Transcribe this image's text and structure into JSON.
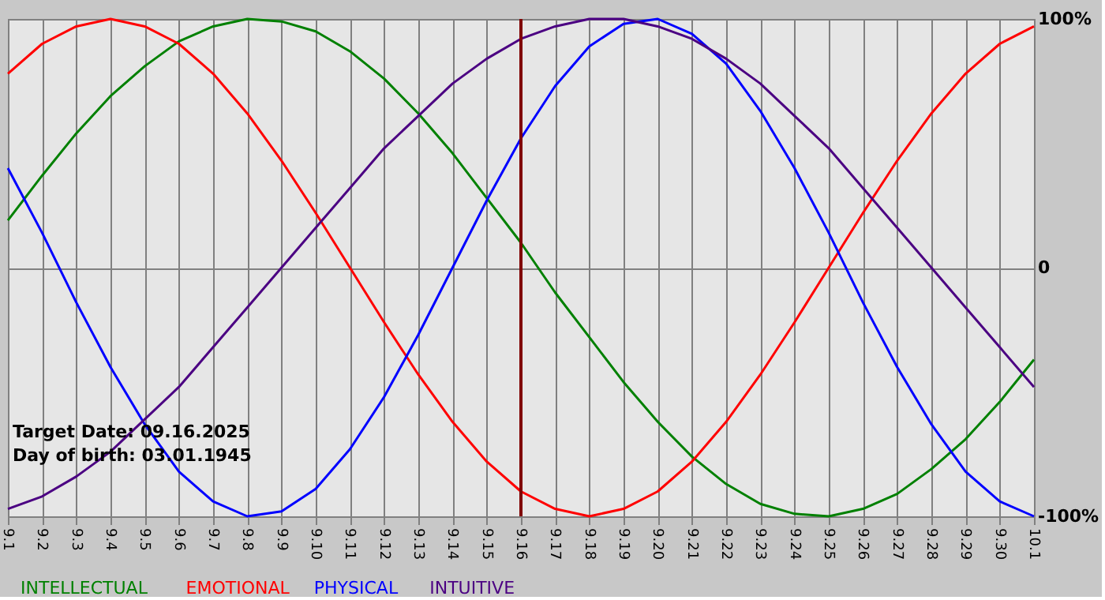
{
  "chart_data": {
    "type": "line",
    "categories": [
      "9.1",
      "9.2",
      "9.3",
      "9.4",
      "9.5",
      "9.6",
      "9.7",
      "9.8",
      "9.9",
      "9.10",
      "9.11",
      "9.12",
      "9.13",
      "9.14",
      "9.15",
      "9.16",
      "9.17",
      "9.18",
      "9.19",
      "9.20",
      "9.21",
      "9.22",
      "9.23",
      "9.24",
      "9.25",
      "9.26",
      "9.27",
      "9.28",
      "9.29",
      "9.30",
      "10.1"
    ],
    "series": [
      {
        "name": "INTELLECTUAL",
        "color": "#008000",
        "values": [
          19,
          37,
          54,
          69,
          81,
          91,
          97,
          100,
          99,
          95,
          87,
          76,
          62,
          46,
          28,
          10,
          -10,
          -28,
          -46,
          -62,
          -76,
          -87,
          -95,
          -99,
          -100,
          -97,
          -91,
          -81,
          -69,
          -54,
          -37
        ]
      },
      {
        "name": "EMOTIONAL",
        "color": "#ff0000",
        "values": [
          78,
          90,
          97,
          100,
          97,
          90,
          78,
          62,
          43,
          22,
          0,
          -22,
          -43,
          -62,
          -78,
          -90,
          -97,
          -100,
          -97,
          -90,
          -78,
          -62,
          -43,
          -22,
          0,
          22,
          43,
          62,
          78,
          90,
          97
        ]
      },
      {
        "name": "PHYSICAL",
        "color": "#0000ff",
        "values": [
          40,
          14,
          -14,
          -40,
          -63,
          -82,
          -94,
          -100,
          -98,
          -89,
          -73,
          -52,
          -27,
          0,
          27,
          52,
          73,
          89,
          98,
          100,
          94,
          82,
          63,
          40,
          14,
          -14,
          -40,
          -63,
          -82,
          -94,
          -100
        ]
      },
      {
        "name": "INTUITIVE",
        "color": "#4b0082",
        "values": [
          -97,
          -92,
          -84,
          -74,
          -61,
          -48,
          -32,
          -16,
          0,
          16,
          32,
          48,
          61,
          74,
          84,
          92,
          97,
          100,
          100,
          97,
          92,
          84,
          74,
          61,
          48,
          32,
          16,
          0,
          -16,
          -32,
          -48
        ]
      }
    ],
    "ylim": [
      -100,
      100
    ],
    "yticks": [
      {
        "value": 100,
        "label": "100%"
      },
      0,
      {
        "value": -100,
        "label": "-100%"
      }
    ],
    "ref_lines": [
      {
        "axis": "x",
        "value": "9.16",
        "color": "#800000"
      }
    ],
    "annotations": [
      "Target Date: 09.16.2025",
      "Day of birth: 03.01.1945"
    ],
    "grid": true,
    "legend": "bottom",
    "marker": "none",
    "line_style": "solid"
  }
}
